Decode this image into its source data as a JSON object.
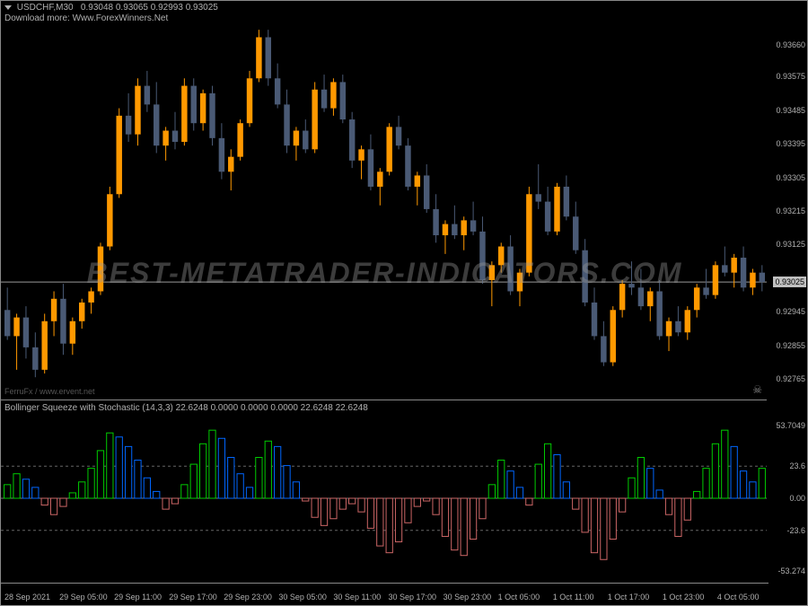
{
  "header": {
    "symbol": "USDCHF,M30",
    "ohlc": "0.93048 0.93065 0.92993 0.93025",
    "subtitle": "Download more: Www.ForexWinners.Net"
  },
  "indicator": {
    "title": "Bollinger Squeeze with Stochastic (14,3,3) 22.6248 0.0000 0.0000 0.0000 22.6248 22.6248"
  },
  "watermark": "BEST-METATRADER-INDICATORS.COM",
  "ferrufx": "FerruFx / www.ervent.net",
  "price_chart": {
    "ymin": 0.9272,
    "ymax": 0.9371,
    "current": 0.93025,
    "yticks": [
      "0.93660",
      "0.93575",
      "0.93485",
      "0.93395",
      "0.93305",
      "0.93215",
      "0.93125",
      "0.93025",
      "0.92945",
      "0.92855",
      "0.92765"
    ],
    "ytick_vals": [
      0.9366,
      0.93575,
      0.93485,
      0.93395,
      0.93305,
      0.93215,
      0.93125,
      0.93025,
      0.92945,
      0.92855,
      0.92765
    ],
    "bull_color": "#ff9900",
    "bear_color": "#4a5a75",
    "wick_color": "#888888",
    "candles": [
      {
        "o": 0.9295,
        "h": 0.9301,
        "l": 0.9287,
        "c": 0.9288
      },
      {
        "o": 0.9288,
        "h": 0.9294,
        "l": 0.9279,
        "c": 0.9293
      },
      {
        "o": 0.9293,
        "h": 0.9296,
        "l": 0.9282,
        "c": 0.9285
      },
      {
        "o": 0.9285,
        "h": 0.9289,
        "l": 0.9277,
        "c": 0.9279
      },
      {
        "o": 0.9279,
        "h": 0.9294,
        "l": 0.9278,
        "c": 0.9292
      },
      {
        "o": 0.9292,
        "h": 0.93,
        "l": 0.9288,
        "c": 0.9298
      },
      {
        "o": 0.9298,
        "h": 0.9302,
        "l": 0.9283,
        "c": 0.9286
      },
      {
        "o": 0.9286,
        "h": 0.9293,
        "l": 0.9283,
        "c": 0.9292
      },
      {
        "o": 0.9292,
        "h": 0.9298,
        "l": 0.929,
        "c": 0.9297
      },
      {
        "o": 0.9297,
        "h": 0.9301,
        "l": 0.9294,
        "c": 0.93
      },
      {
        "o": 0.93,
        "h": 0.9313,
        "l": 0.9299,
        "c": 0.9312
      },
      {
        "o": 0.9312,
        "h": 0.9328,
        "l": 0.9311,
        "c": 0.9326
      },
      {
        "o": 0.9326,
        "h": 0.9349,
        "l": 0.9325,
        "c": 0.9347
      },
      {
        "o": 0.9347,
        "h": 0.9353,
        "l": 0.934,
        "c": 0.9342
      },
      {
        "o": 0.9342,
        "h": 0.9357,
        "l": 0.9339,
        "c": 0.9355
      },
      {
        "o": 0.9355,
        "h": 0.9359,
        "l": 0.9348,
        "c": 0.935
      },
      {
        "o": 0.935,
        "h": 0.9356,
        "l": 0.9337,
        "c": 0.9339
      },
      {
        "o": 0.9339,
        "h": 0.9344,
        "l": 0.9335,
        "c": 0.9343
      },
      {
        "o": 0.9343,
        "h": 0.9348,
        "l": 0.9338,
        "c": 0.934
      },
      {
        "o": 0.934,
        "h": 0.9357,
        "l": 0.9339,
        "c": 0.9355
      },
      {
        "o": 0.9355,
        "h": 0.9357,
        "l": 0.9343,
        "c": 0.9345
      },
      {
        "o": 0.9345,
        "h": 0.9354,
        "l": 0.9343,
        "c": 0.9353
      },
      {
        "o": 0.9353,
        "h": 0.9355,
        "l": 0.9339,
        "c": 0.9341
      },
      {
        "o": 0.9341,
        "h": 0.9345,
        "l": 0.933,
        "c": 0.9332
      },
      {
        "o": 0.9332,
        "h": 0.9338,
        "l": 0.9327,
        "c": 0.9336
      },
      {
        "o": 0.9336,
        "h": 0.9346,
        "l": 0.9335,
        "c": 0.9345
      },
      {
        "o": 0.9345,
        "h": 0.9359,
        "l": 0.9344,
        "c": 0.9357
      },
      {
        "o": 0.9357,
        "h": 0.937,
        "l": 0.9356,
        "c": 0.9368
      },
      {
        "o": 0.9368,
        "h": 0.937,
        "l": 0.9355,
        "c": 0.9357
      },
      {
        "o": 0.9357,
        "h": 0.9361,
        "l": 0.9349,
        "c": 0.935
      },
      {
        "o": 0.935,
        "h": 0.9354,
        "l": 0.9337,
        "c": 0.9339
      },
      {
        "o": 0.9339,
        "h": 0.9344,
        "l": 0.9335,
        "c": 0.9343
      },
      {
        "o": 0.9343,
        "h": 0.9346,
        "l": 0.9337,
        "c": 0.9338
      },
      {
        "o": 0.9338,
        "h": 0.9356,
        "l": 0.9337,
        "c": 0.9354
      },
      {
        "o": 0.9354,
        "h": 0.9358,
        "l": 0.9348,
        "c": 0.9349
      },
      {
        "o": 0.9349,
        "h": 0.9357,
        "l": 0.9347,
        "c": 0.9356
      },
      {
        "o": 0.9356,
        "h": 0.9358,
        "l": 0.9345,
        "c": 0.9346
      },
      {
        "o": 0.9346,
        "h": 0.9348,
        "l": 0.9333,
        "c": 0.9335
      },
      {
        "o": 0.9335,
        "h": 0.9339,
        "l": 0.933,
        "c": 0.9338
      },
      {
        "o": 0.9338,
        "h": 0.9342,
        "l": 0.9327,
        "c": 0.9328
      },
      {
        "o": 0.9328,
        "h": 0.9333,
        "l": 0.9323,
        "c": 0.9332
      },
      {
        "o": 0.9332,
        "h": 0.9345,
        "l": 0.9331,
        "c": 0.9344
      },
      {
        "o": 0.9344,
        "h": 0.9347,
        "l": 0.9338,
        "c": 0.9339
      },
      {
        "o": 0.9339,
        "h": 0.9341,
        "l": 0.9327,
        "c": 0.9328
      },
      {
        "o": 0.9328,
        "h": 0.9332,
        "l": 0.9323,
        "c": 0.9331
      },
      {
        "o": 0.9331,
        "h": 0.9334,
        "l": 0.9321,
        "c": 0.9322
      },
      {
        "o": 0.9322,
        "h": 0.9326,
        "l": 0.9313,
        "c": 0.9315
      },
      {
        "o": 0.9315,
        "h": 0.9319,
        "l": 0.931,
        "c": 0.9318
      },
      {
        "o": 0.9318,
        "h": 0.9323,
        "l": 0.9314,
        "c": 0.9315
      },
      {
        "o": 0.9315,
        "h": 0.932,
        "l": 0.9311,
        "c": 0.9319
      },
      {
        "o": 0.9319,
        "h": 0.9324,
        "l": 0.9315,
        "c": 0.9316
      },
      {
        "o": 0.9316,
        "h": 0.932,
        "l": 0.9302,
        "c": 0.9303
      },
      {
        "o": 0.9303,
        "h": 0.9308,
        "l": 0.9296,
        "c": 0.9307
      },
      {
        "o": 0.9307,
        "h": 0.9313,
        "l": 0.9305,
        "c": 0.9312
      },
      {
        "o": 0.9312,
        "h": 0.9315,
        "l": 0.9299,
        "c": 0.93
      },
      {
        "o": 0.93,
        "h": 0.9306,
        "l": 0.9296,
        "c": 0.9305
      },
      {
        "o": 0.9305,
        "h": 0.9328,
        "l": 0.9304,
        "c": 0.9326
      },
      {
        "o": 0.9326,
        "h": 0.9334,
        "l": 0.9322,
        "c": 0.9324
      },
      {
        "o": 0.9324,
        "h": 0.9328,
        "l": 0.9315,
        "c": 0.9316
      },
      {
        "o": 0.9316,
        "h": 0.9329,
        "l": 0.9315,
        "c": 0.9328
      },
      {
        "o": 0.9328,
        "h": 0.9331,
        "l": 0.9319,
        "c": 0.932
      },
      {
        "o": 0.932,
        "h": 0.9324,
        "l": 0.931,
        "c": 0.9311
      },
      {
        "o": 0.9311,
        "h": 0.9314,
        "l": 0.9296,
        "c": 0.9297
      },
      {
        "o": 0.9297,
        "h": 0.9301,
        "l": 0.9287,
        "c": 0.9288
      },
      {
        "o": 0.9288,
        "h": 0.9292,
        "l": 0.928,
        "c": 0.9281
      },
      {
        "o": 0.9281,
        "h": 0.9296,
        "l": 0.928,
        "c": 0.9295
      },
      {
        "o": 0.9295,
        "h": 0.9303,
        "l": 0.9293,
        "c": 0.9302
      },
      {
        "o": 0.9302,
        "h": 0.9308,
        "l": 0.9299,
        "c": 0.9301
      },
      {
        "o": 0.9301,
        "h": 0.9306,
        "l": 0.9295,
        "c": 0.9296
      },
      {
        "o": 0.9296,
        "h": 0.9301,
        "l": 0.9292,
        "c": 0.93
      },
      {
        "o": 0.93,
        "h": 0.9303,
        "l": 0.9287,
        "c": 0.9288
      },
      {
        "o": 0.9288,
        "h": 0.9293,
        "l": 0.9284,
        "c": 0.9292
      },
      {
        "o": 0.9292,
        "h": 0.9296,
        "l": 0.9288,
        "c": 0.9289
      },
      {
        "o": 0.9289,
        "h": 0.9296,
        "l": 0.9287,
        "c": 0.9295
      },
      {
        "o": 0.9295,
        "h": 0.9302,
        "l": 0.9293,
        "c": 0.9301
      },
      {
        "o": 0.9301,
        "h": 0.9306,
        "l": 0.9298,
        "c": 0.9299
      },
      {
        "o": 0.9299,
        "h": 0.9308,
        "l": 0.9298,
        "c": 0.9307
      },
      {
        "o": 0.9307,
        "h": 0.9312,
        "l": 0.9304,
        "c": 0.9305
      },
      {
        "o": 0.9305,
        "h": 0.931,
        "l": 0.9301,
        "c": 0.9309
      },
      {
        "o": 0.9309,
        "h": 0.9312,
        "l": 0.93,
        "c": 0.9301
      },
      {
        "o": 0.9301,
        "h": 0.9306,
        "l": 0.9299,
        "c": 0.9305
      },
      {
        "o": 0.9305,
        "h": 0.9307,
        "l": 0.93,
        "c": 0.93025
      }
    ]
  },
  "indicator_chart": {
    "ymin": -60,
    "ymax": 60,
    "yticks": [
      "53.7049",
      "23.6",
      "0.00",
      "-23.6",
      "-53.274"
    ],
    "ytick_vals": [
      53.7049,
      23.6,
      0,
      -23.6,
      -53.274
    ],
    "ref_lines": [
      23.6,
      0,
      -23.6
    ],
    "colors": {
      "hi_up": "#00cc00",
      "hi_dn": "#0066ff",
      "lo_up": "#cc6666",
      "lo_dn": "#cc6666"
    },
    "values": [
      10,
      18,
      14,
      8,
      -5,
      -12,
      -6,
      4,
      12,
      22,
      35,
      48,
      45,
      38,
      28,
      15,
      5,
      -8,
      -4,
      10,
      25,
      40,
      50,
      44,
      30,
      18,
      8,
      30,
      42,
      38,
      24,
      12,
      -2,
      -14,
      -20,
      -15,
      -8,
      -4,
      -10,
      -22,
      -35,
      -40,
      -32,
      -18,
      -6,
      -2,
      -12,
      -28,
      -38,
      -42,
      -30,
      -15,
      10,
      28,
      20,
      8,
      -5,
      25,
      40,
      32,
      12,
      -8,
      -25,
      -40,
      -45,
      -30,
      -10,
      15,
      30,
      22,
      6,
      -12,
      -28,
      -16,
      5,
      22,
      40,
      50,
      38,
      20,
      12,
      22
    ]
  },
  "x_axis": {
    "labels": [
      "28 Sep 2021",
      "29 Sep 05:00",
      "29 Sep 11:00",
      "29 Sep 17:00",
      "29 Sep 23:00",
      "30 Sep 05:00",
      "30 Sep 11:00",
      "30 Sep 17:00",
      "30 Sep 23:00",
      "1 Oct 05:00",
      "1 Oct 11:00",
      "1 Oct 17:00",
      "1 Oct 23:00",
      "4 Oct 05:00"
    ]
  }
}
